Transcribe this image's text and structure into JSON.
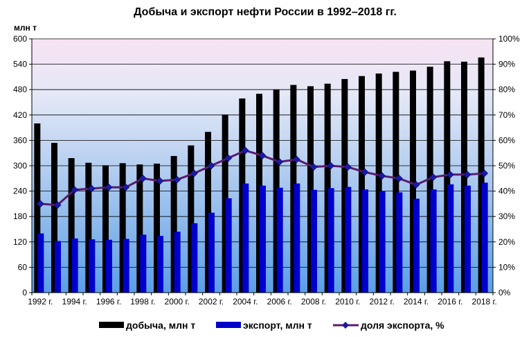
{
  "chart_data": {
    "type": "bar",
    "title": "Добыча и экспорт нефти России в 1992–2018 гг.",
    "ylabel_left": "млн т",
    "x": [
      1992,
      1993,
      1994,
      1995,
      1996,
      1997,
      1998,
      1999,
      2000,
      2001,
      2002,
      2003,
      2004,
      2005,
      2006,
      2007,
      2008,
      2009,
      2010,
      2011,
      2012,
      2013,
      2014,
      2015,
      2016,
      2017,
      2018
    ],
    "x_tick_labels": [
      "1992 г.",
      "1994 г.",
      "1996 г.",
      "1998 г.",
      "2000 г.",
      "2002 г.",
      "2004 г.",
      "2006 г.",
      "2008 г.",
      "2010 г.",
      "2012 г.",
      "2014 г.",
      "2016 г.",
      "2018 г."
    ],
    "y_left_ticks": [
      "0",
      "60",
      "120",
      "180",
      "240",
      "300",
      "360",
      "420",
      "480",
      "540",
      "600"
    ],
    "y_right_ticks": [
      "0%",
      "10%",
      "20%",
      "30%",
      "40%",
      "50%",
      "60%",
      "70%",
      "80%",
      "90%",
      "100%"
    ],
    "ylim_left": [
      0,
      600
    ],
    "ylim_right": [
      0,
      100
    ],
    "grid": true,
    "legend_position": "bottom",
    "series": [
      {
        "name": "добыча, млн т",
        "kind": "bar",
        "color": "#000000",
        "values": [
          400,
          354,
          318,
          307,
          301,
          306,
          303,
          305,
          323,
          348,
          380,
          421,
          459,
          470,
          480,
          491,
          488,
          494,
          505,
          512,
          518,
          522,
          525,
          534,
          547,
          546,
          556
        ]
      },
      {
        "name": "экспорт, млн т",
        "kind": "bar",
        "color": "#0000cc",
        "values": [
          140,
          122,
          128,
          126,
          125,
          127,
          137,
          134,
          144,
          164,
          189,
          223,
          258,
          253,
          248,
          258,
          243,
          247,
          250,
          244,
          240,
          237,
          222,
          244,
          256,
          253,
          260
        ]
      },
      {
        "name": "доля экспорта, %",
        "kind": "line",
        "axis": "right",
        "color": "#5a1a6e",
        "values": [
          35,
          34.5,
          40.5,
          41,
          41.5,
          41.5,
          45,
          44,
          44.5,
          47,
          50,
          53,
          56,
          54,
          51.5,
          52.5,
          49.5,
          50,
          49.5,
          47.5,
          46,
          45,
          42.5,
          45.5,
          46.5,
          46.5,
          47
        ]
      }
    ]
  }
}
